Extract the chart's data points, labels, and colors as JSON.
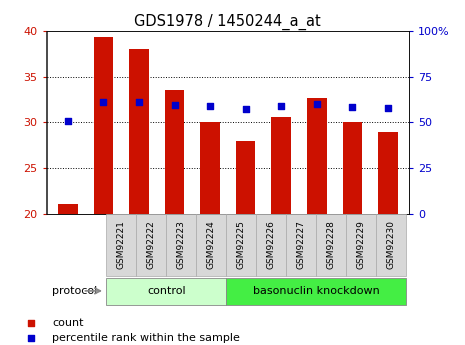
{
  "title": "GDS1978 / 1450244_a_at",
  "samples": [
    "GSM92221",
    "GSM92222",
    "GSM92223",
    "GSM92224",
    "GSM92225",
    "GSM92226",
    "GSM92227",
    "GSM92228",
    "GSM92229",
    "GSM92230"
  ],
  "counts": [
    21.1,
    39.3,
    38.0,
    33.5,
    30.0,
    28.0,
    30.6,
    32.7,
    30.1,
    29.0
  ],
  "percentiles_left": [
    30.2,
    32.2,
    32.2,
    31.9,
    31.8,
    31.5,
    31.8,
    32.0,
    31.7,
    31.6
  ],
  "bar_color": "#cc1100",
  "dot_color": "#0000cc",
  "ylim_left": [
    20,
    40
  ],
  "ylim_right": [
    0,
    100
  ],
  "yticks_left": [
    20,
    25,
    30,
    35,
    40
  ],
  "yticks_right": [
    0,
    25,
    50,
    75,
    100
  ],
  "ytick_labels_right": [
    "0",
    "25",
    "50",
    "75",
    "100%"
  ],
  "grid_values": [
    25,
    30,
    35
  ],
  "control_indices": [
    0,
    1,
    2,
    3
  ],
  "knockdown_indices": [
    4,
    5,
    6,
    7,
    8,
    9
  ],
  "control_label": "control",
  "knockdown_label": "basonuclin knockdown",
  "control_color": "#ccffcc",
  "knockdown_color": "#44ee44",
  "protocol_label": "protocol",
  "legend_count_label": "count",
  "legend_pct_label": "percentile rank within the sample",
  "bar_color_legend": "#cc1100",
  "dot_color_legend": "#0000cc",
  "bar_width": 0.55,
  "tick_bg_color": "#d8d8d8",
  "tick_border_color": "#aaaaaa"
}
